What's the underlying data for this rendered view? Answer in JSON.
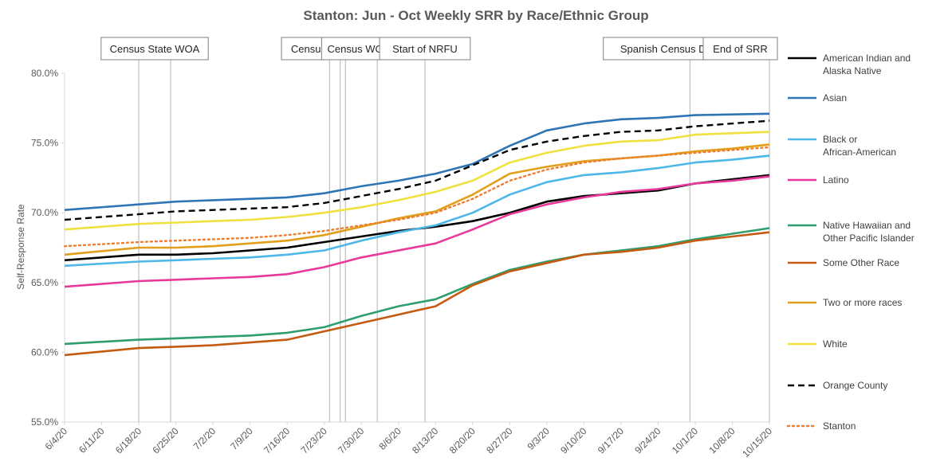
{
  "chart_data": {
    "type": "line",
    "title": "Stanton: Jun - Oct Weekly SRR by Race/Ethnic Group",
    "ylabel": "Self-Response Rate",
    "xlabel": "",
    "ylim": [
      55,
      80
    ],
    "y_ticks": [
      "55.0%",
      "60.0%",
      "65.0%",
      "70.0%",
      "75.0%",
      "80.0%"
    ],
    "y_tick_values": [
      55,
      60,
      65,
      70,
      75,
      80
    ],
    "x_start": "2020-06-04",
    "x_end": "2020-10-15",
    "x_ticks": [
      "6/4/20",
      "6/11/20",
      "6/18/20",
      "6/25/20",
      "7/2/20",
      "7/9/20",
      "7/16/20",
      "7/23/20",
      "7/30/20",
      "8/6/20",
      "8/13/20",
      "8/20/20",
      "8/27/20",
      "9/3/20",
      "9/10/20",
      "9/17/20",
      "9/24/20",
      "10/1/20",
      "10/8/20",
      "10/15/20"
    ],
    "x_tick_dates": [
      "2020-06-04",
      "2020-06-11",
      "2020-06-18",
      "2020-06-25",
      "2020-07-02",
      "2020-07-09",
      "2020-07-16",
      "2020-07-23",
      "2020-07-30",
      "2020-08-06",
      "2020-08-13",
      "2020-08-20",
      "2020-08-27",
      "2020-09-03",
      "2020-09-10",
      "2020-09-17",
      "2020-09-24",
      "2020-10-01",
      "2020-10-08",
      "2020-10-15"
    ],
    "grid": false,
    "legend_position": "right",
    "events": [
      {
        "label": "Census State WOA",
        "dates": [
          "2020-06-18",
          "2020-06-24"
        ]
      },
      {
        "label": "Census Caravan",
        "dates": [
          "2020-07-24"
        ]
      },
      {
        "label": "Census WOA",
        "dates": [
          "2020-07-26",
          "2020-07-27",
          "2020-08-02"
        ]
      },
      {
        "label": "Start of NRFU",
        "dates": [
          "2020-08-11"
        ]
      },
      {
        "label": "Spanish Census Day of Action",
        "dates": [
          "2020-09-30"
        ]
      },
      {
        "label": "End of SRR",
        "dates": [
          "2020-10-15"
        ]
      }
    ],
    "series": [
      {
        "name": "American Indian and Alaska Native",
        "color": "#000000",
        "dash": "solid",
        "points": [
          [
            "2020-06-04",
            66.6
          ],
          [
            "2020-06-18",
            67.0
          ],
          [
            "2020-06-25",
            67.0
          ],
          [
            "2020-07-02",
            67.1
          ],
          [
            "2020-07-09",
            67.3
          ],
          [
            "2020-07-16",
            67.5
          ],
          [
            "2020-07-23",
            67.9
          ],
          [
            "2020-07-30",
            68.3
          ],
          [
            "2020-08-06",
            68.7
          ],
          [
            "2020-08-13",
            69.0
          ],
          [
            "2020-08-20",
            69.4
          ],
          [
            "2020-08-27",
            70.0
          ],
          [
            "2020-09-03",
            70.8
          ],
          [
            "2020-09-10",
            71.2
          ],
          [
            "2020-09-17",
            71.4
          ],
          [
            "2020-09-24",
            71.6
          ],
          [
            "2020-10-01",
            72.1
          ],
          [
            "2020-10-08",
            72.4
          ],
          [
            "2020-10-15",
            72.7
          ]
        ]
      },
      {
        "name": "Asian",
        "color": "#2E75B6",
        "dash": "solid",
        "points": [
          [
            "2020-06-04",
            70.2
          ],
          [
            "2020-06-18",
            70.6
          ],
          [
            "2020-06-25",
            70.8
          ],
          [
            "2020-07-02",
            70.9
          ],
          [
            "2020-07-09",
            71.0
          ],
          [
            "2020-07-16",
            71.1
          ],
          [
            "2020-07-23",
            71.4
          ],
          [
            "2020-07-30",
            71.9
          ],
          [
            "2020-08-06",
            72.3
          ],
          [
            "2020-08-13",
            72.8
          ],
          [
            "2020-08-20",
            73.5
          ],
          [
            "2020-08-27",
            74.8
          ],
          [
            "2020-09-03",
            75.9
          ],
          [
            "2020-09-10",
            76.4
          ],
          [
            "2020-09-17",
            76.7
          ],
          [
            "2020-09-24",
            76.8
          ],
          [
            "2020-10-01",
            77.0
          ],
          [
            "2020-10-08",
            77.05
          ],
          [
            "2020-10-15",
            77.1
          ]
        ]
      },
      {
        "name": "Black or African-American",
        "color": "#4DB8E8",
        "dash": "solid",
        "points": [
          [
            "2020-06-04",
            66.2
          ],
          [
            "2020-06-18",
            66.5
          ],
          [
            "2020-06-25",
            66.6
          ],
          [
            "2020-07-02",
            66.7
          ],
          [
            "2020-07-09",
            66.8
          ],
          [
            "2020-07-16",
            67.0
          ],
          [
            "2020-07-23",
            67.3
          ],
          [
            "2020-07-30",
            68.0
          ],
          [
            "2020-08-06",
            68.6
          ],
          [
            "2020-08-13",
            69.1
          ],
          [
            "2020-08-20",
            70.0
          ],
          [
            "2020-08-27",
            71.3
          ],
          [
            "2020-09-03",
            72.2
          ],
          [
            "2020-09-10",
            72.7
          ],
          [
            "2020-09-17",
            72.9
          ],
          [
            "2020-09-24",
            73.2
          ],
          [
            "2020-10-01",
            73.6
          ],
          [
            "2020-10-08",
            73.8
          ],
          [
            "2020-10-15",
            74.1
          ]
        ]
      },
      {
        "name": "Latino",
        "color": "#E8399B",
        "dash": "solid",
        "points": [
          [
            "2020-06-04",
            64.7
          ],
          [
            "2020-06-18",
            65.1
          ],
          [
            "2020-06-25",
            65.2
          ],
          [
            "2020-07-02",
            65.3
          ],
          [
            "2020-07-09",
            65.4
          ],
          [
            "2020-07-16",
            65.6
          ],
          [
            "2020-07-23",
            66.1
          ],
          [
            "2020-07-30",
            66.8
          ],
          [
            "2020-08-06",
            67.3
          ],
          [
            "2020-08-13",
            67.8
          ],
          [
            "2020-08-20",
            68.8
          ],
          [
            "2020-08-27",
            69.9
          ],
          [
            "2020-09-03",
            70.6
          ],
          [
            "2020-09-10",
            71.1
          ],
          [
            "2020-09-17",
            71.5
          ],
          [
            "2020-09-24",
            71.7
          ],
          [
            "2020-10-01",
            72.1
          ],
          [
            "2020-10-08",
            72.3
          ],
          [
            "2020-10-15",
            72.6
          ]
        ]
      },
      {
        "name": "Native Hawaiian and Other Pacific Islander",
        "color": "#2E9E6E",
        "dash": "solid",
        "points": [
          [
            "2020-06-04",
            60.6
          ],
          [
            "2020-06-18",
            60.9
          ],
          [
            "2020-06-25",
            61.0
          ],
          [
            "2020-07-02",
            61.1
          ],
          [
            "2020-07-09",
            61.2
          ],
          [
            "2020-07-16",
            61.4
          ],
          [
            "2020-07-23",
            61.8
          ],
          [
            "2020-07-30",
            62.6
          ],
          [
            "2020-08-06",
            63.3
          ],
          [
            "2020-08-13",
            63.8
          ],
          [
            "2020-08-20",
            64.9
          ],
          [
            "2020-08-27",
            65.9
          ],
          [
            "2020-09-03",
            66.5
          ],
          [
            "2020-09-10",
            67.0
          ],
          [
            "2020-09-17",
            67.3
          ],
          [
            "2020-09-24",
            67.6
          ],
          [
            "2020-10-01",
            68.1
          ],
          [
            "2020-10-08",
            68.5
          ],
          [
            "2020-10-15",
            68.9
          ]
        ]
      },
      {
        "name": "Some Other Race",
        "color": "#C55A11",
        "dash": "solid",
        "points": [
          [
            "2020-06-04",
            59.8
          ],
          [
            "2020-06-18",
            60.3
          ],
          [
            "2020-06-25",
            60.4
          ],
          [
            "2020-07-02",
            60.5
          ],
          [
            "2020-07-09",
            60.7
          ],
          [
            "2020-07-16",
            60.9
          ],
          [
            "2020-07-23",
            61.5
          ],
          [
            "2020-07-30",
            62.1
          ],
          [
            "2020-08-06",
            62.7
          ],
          [
            "2020-08-13",
            63.3
          ],
          [
            "2020-08-20",
            64.8
          ],
          [
            "2020-08-27",
            65.8
          ],
          [
            "2020-09-03",
            66.4
          ],
          [
            "2020-09-10",
            67.0
          ],
          [
            "2020-09-17",
            67.2
          ],
          [
            "2020-09-24",
            67.5
          ],
          [
            "2020-10-01",
            68.0
          ],
          [
            "2020-10-08",
            68.3
          ],
          [
            "2020-10-15",
            68.6
          ]
        ]
      },
      {
        "name": "Two or more races",
        "color": "#E19F1A",
        "dash": "solid",
        "points": [
          [
            "2020-06-04",
            67.0
          ],
          [
            "2020-06-18",
            67.5
          ],
          [
            "2020-06-25",
            67.5
          ],
          [
            "2020-07-02",
            67.6
          ],
          [
            "2020-07-09",
            67.8
          ],
          [
            "2020-07-16",
            68.0
          ],
          [
            "2020-07-23",
            68.4
          ],
          [
            "2020-07-30",
            69.0
          ],
          [
            "2020-08-06",
            69.6
          ],
          [
            "2020-08-13",
            70.1
          ],
          [
            "2020-08-20",
            71.3
          ],
          [
            "2020-08-27",
            72.8
          ],
          [
            "2020-09-03",
            73.3
          ],
          [
            "2020-09-10",
            73.7
          ],
          [
            "2020-09-17",
            73.9
          ],
          [
            "2020-09-24",
            74.1
          ],
          [
            "2020-10-01",
            74.4
          ],
          [
            "2020-10-08",
            74.6
          ],
          [
            "2020-10-15",
            74.9
          ]
        ]
      },
      {
        "name": "White",
        "color": "#F0E040",
        "dash": "solid",
        "points": [
          [
            "2020-06-04",
            68.8
          ],
          [
            "2020-06-18",
            69.2
          ],
          [
            "2020-06-25",
            69.3
          ],
          [
            "2020-07-02",
            69.4
          ],
          [
            "2020-07-09",
            69.5
          ],
          [
            "2020-07-16",
            69.7
          ],
          [
            "2020-07-23",
            70.0
          ],
          [
            "2020-07-30",
            70.4
          ],
          [
            "2020-08-06",
            70.9
          ],
          [
            "2020-08-13",
            71.5
          ],
          [
            "2020-08-20",
            72.3
          ],
          [
            "2020-08-27",
            73.6
          ],
          [
            "2020-09-03",
            74.3
          ],
          [
            "2020-09-10",
            74.8
          ],
          [
            "2020-09-17",
            75.1
          ],
          [
            "2020-09-24",
            75.2
          ],
          [
            "2020-10-01",
            75.6
          ],
          [
            "2020-10-08",
            75.7
          ],
          [
            "2020-10-15",
            75.8
          ]
        ]
      },
      {
        "name": "Orange County",
        "color": "#000000",
        "dash": "dashed",
        "points": [
          [
            "2020-06-04",
            69.5
          ],
          [
            "2020-06-18",
            69.9
          ],
          [
            "2020-06-25",
            70.1
          ],
          [
            "2020-07-02",
            70.2
          ],
          [
            "2020-07-09",
            70.3
          ],
          [
            "2020-07-16",
            70.4
          ],
          [
            "2020-07-23",
            70.7
          ],
          [
            "2020-07-30",
            71.2
          ],
          [
            "2020-08-06",
            71.7
          ],
          [
            "2020-08-13",
            72.3
          ],
          [
            "2020-08-20",
            73.4
          ],
          [
            "2020-08-27",
            74.5
          ],
          [
            "2020-09-03",
            75.1
          ],
          [
            "2020-09-10",
            75.5
          ],
          [
            "2020-09-17",
            75.8
          ],
          [
            "2020-09-24",
            75.9
          ],
          [
            "2020-10-01",
            76.2
          ],
          [
            "2020-10-08",
            76.4
          ],
          [
            "2020-10-15",
            76.6
          ]
        ]
      },
      {
        "name": "Stanton",
        "color": "#ED7D31",
        "dash": "dotted",
        "points": [
          [
            "2020-06-04",
            67.6
          ],
          [
            "2020-06-18",
            67.9
          ],
          [
            "2020-06-25",
            68.0
          ],
          [
            "2020-07-02",
            68.1
          ],
          [
            "2020-07-09",
            68.2
          ],
          [
            "2020-07-16",
            68.4
          ],
          [
            "2020-07-23",
            68.7
          ],
          [
            "2020-07-30",
            69.1
          ],
          [
            "2020-08-06",
            69.5
          ],
          [
            "2020-08-13",
            70.0
          ],
          [
            "2020-08-20",
            71.0
          ],
          [
            "2020-08-27",
            72.3
          ],
          [
            "2020-09-03",
            73.1
          ],
          [
            "2020-09-10",
            73.6
          ],
          [
            "2020-09-17",
            73.9
          ],
          [
            "2020-09-24",
            74.1
          ],
          [
            "2020-10-01",
            74.3
          ],
          [
            "2020-10-08",
            74.5
          ],
          [
            "2020-10-15",
            74.7
          ]
        ]
      }
    ]
  }
}
